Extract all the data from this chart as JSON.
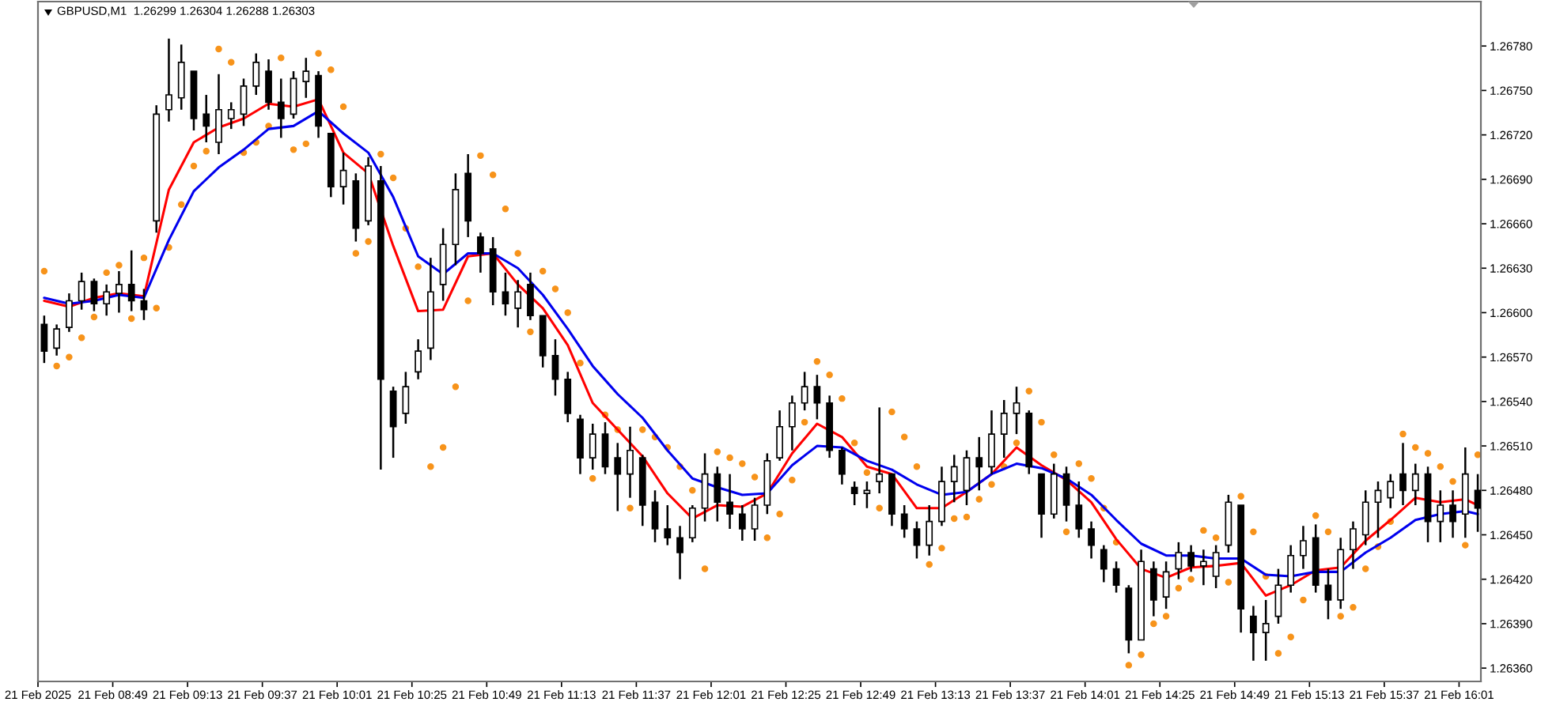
{
  "chart_data": {
    "type": "candlestick",
    "title": "GBPUSD,M1  1.26299 1.26304 1.26288 1.26303",
    "color": "#000000",
    "x": [
      "2025-02-21T08:27",
      "2025-02-21T08:31",
      "2025-02-21T08:35",
      "2025-02-21T08:39",
      "2025-02-21T08:43",
      "2025-02-21T08:47",
      "2025-02-21T08:51",
      "2025-02-21T08:55",
      "2025-02-21T08:59",
      "2025-02-21T09:03",
      "2025-02-21T09:07",
      "2025-02-21T09:11",
      "2025-02-21T09:15",
      "2025-02-21T09:19",
      "2025-02-21T09:23",
      "2025-02-21T09:27",
      "2025-02-21T09:31",
      "2025-02-21T09:35",
      "2025-02-21T09:39",
      "2025-02-21T09:43",
      "2025-02-21T09:47",
      "2025-02-21T09:51",
      "2025-02-21T09:55",
      "2025-02-21T09:59",
      "2025-02-21T10:03",
      "2025-02-21T10:07",
      "2025-02-21T10:11",
      "2025-02-21T10:15",
      "2025-02-21T10:19",
      "2025-02-21T10:23",
      "2025-02-21T10:27",
      "2025-02-21T10:31",
      "2025-02-21T10:35",
      "2025-02-21T10:39",
      "2025-02-21T10:43",
      "2025-02-21T10:47",
      "2025-02-21T10:51",
      "2025-02-21T10:55",
      "2025-02-21T10:59",
      "2025-02-21T11:03",
      "2025-02-21T11:07",
      "2025-02-21T11:11",
      "2025-02-21T11:15",
      "2025-02-21T11:19",
      "2025-02-21T11:23",
      "2025-02-21T11:27",
      "2025-02-21T11:31",
      "2025-02-21T11:35",
      "2025-02-21T11:39",
      "2025-02-21T11:43",
      "2025-02-21T11:47",
      "2025-02-21T11:51",
      "2025-02-21T11:55",
      "2025-02-21T11:59",
      "2025-02-21T12:03",
      "2025-02-21T12:07",
      "2025-02-21T12:11",
      "2025-02-21T12:15",
      "2025-02-21T12:19",
      "2025-02-21T12:23",
      "2025-02-21T12:27",
      "2025-02-21T12:31",
      "2025-02-21T12:35",
      "2025-02-21T12:39",
      "2025-02-21T12:43",
      "2025-02-21T12:47",
      "2025-02-21T12:51",
      "2025-02-21T12:55",
      "2025-02-21T12:59",
      "2025-02-21T13:03",
      "2025-02-21T13:07",
      "2025-02-21T13:11",
      "2025-02-21T13:15",
      "2025-02-21T13:19",
      "2025-02-21T13:23",
      "2025-02-21T13:27",
      "2025-02-21T13:31",
      "2025-02-21T13:35",
      "2025-02-21T13:39",
      "2025-02-21T13:43",
      "2025-02-21T13:47",
      "2025-02-21T13:51",
      "2025-02-21T13:55",
      "2025-02-21T13:59",
      "2025-02-21T14:03",
      "2025-02-21T14:07",
      "2025-02-21T14:11",
      "2025-02-21T14:15",
      "2025-02-21T14:19",
      "2025-02-21T14:23",
      "2025-02-21T14:27",
      "2025-02-21T14:31",
      "2025-02-21T14:35",
      "2025-02-21T14:39",
      "2025-02-21T14:43",
      "2025-02-21T14:47",
      "2025-02-21T14:51",
      "2025-02-21T14:55",
      "2025-02-21T14:59",
      "2025-02-21T15:03",
      "2025-02-21T15:07",
      "2025-02-21T15:11",
      "2025-02-21T15:15",
      "2025-02-21T15:19",
      "2025-02-21T15:23",
      "2025-02-21T15:27",
      "2025-02-21T15:31",
      "2025-02-21T15:35",
      "2025-02-21T15:39",
      "2025-02-21T15:43",
      "2025-02-21T15:47",
      "2025-02-21T15:51",
      "2025-02-21T15:55",
      "2025-02-21T15:59",
      "2025-02-21T16:03",
      "2025-02-21T16:07"
    ],
    "ohlc": [
      [
        1.26592,
        1.26598,
        1.26566,
        1.26574
      ],
      [
        1.26576,
        1.26592,
        1.26571,
        1.26589
      ],
      [
        1.2659,
        1.26613,
        1.26587,
        1.26608
      ],
      [
        1.26608,
        1.26627,
        1.26602,
        1.26621
      ],
      [
        1.26621,
        1.26623,
        1.26601,
        1.26606
      ],
      [
        1.26606,
        1.26619,
        1.26598,
        1.26614
      ],
      [
        1.26613,
        1.26628,
        1.266,
        1.26619
      ],
      [
        1.26619,
        1.26642,
        1.26601,
        1.26608
      ],
      [
        1.26608,
        1.26616,
        1.26595,
        1.26602
      ],
      [
        1.26662,
        1.2674,
        1.26654,
        1.26734
      ],
      [
        1.26737,
        1.26785,
        1.26729,
        1.26747
      ],
      [
        1.26745,
        1.26781,
        1.26737,
        1.26769
      ],
      [
        1.26763,
        1.26763,
        1.26723,
        1.26731
      ],
      [
        1.26734,
        1.26747,
        1.26715,
        1.26726
      ],
      [
        1.26715,
        1.26761,
        1.26707,
        1.26737
      ],
      [
        1.26731,
        1.26742,
        1.26724,
        1.26737
      ],
      [
        1.26734,
        1.26758,
        1.26726,
        1.26753
      ],
      [
        1.26753,
        1.26775,
        1.26747,
        1.26769
      ],
      [
        1.26763,
        1.26771,
        1.26737,
        1.26742
      ],
      [
        1.26742,
        1.26758,
        1.26718,
        1.26731
      ],
      [
        1.26734,
        1.26763,
        1.26731,
        1.26758
      ],
      [
        1.26756,
        1.26772,
        1.26745,
        1.26763
      ],
      [
        1.2676,
        1.26763,
        1.26718,
        1.26726
      ],
      [
        1.26721,
        1.26721,
        1.26678,
        1.26685
      ],
      [
        1.26685,
        1.26708,
        1.26673,
        1.26696
      ],
      [
        1.26689,
        1.26694,
        1.26648,
        1.26657
      ],
      [
        1.26662,
        1.26705,
        1.26659,
        1.26699
      ],
      [
        1.26689,
        1.26699,
        1.26494,
        1.26555
      ],
      [
        1.26547,
        1.2655,
        1.26502,
        1.26523
      ],
      [
        1.26532,
        1.2656,
        1.26525,
        1.2655
      ],
      [
        1.2656,
        1.26582,
        1.26555,
        1.26574
      ],
      [
        1.26576,
        1.26637,
        1.26568,
        1.26614
      ],
      [
        1.26619,
        1.26657,
        1.26608,
        1.26646
      ],
      [
        1.26646,
        1.26694,
        1.26632,
        1.26683
      ],
      [
        1.26694,
        1.26707,
        1.26651,
        1.26662
      ],
      [
        1.26651,
        1.26654,
        1.26627,
        1.2664
      ],
      [
        1.26643,
        1.26651,
        1.26605,
        1.26614
      ],
      [
        1.26614,
        1.26627,
        1.26598,
        1.26606
      ],
      [
        1.26603,
        1.26622,
        1.2659,
        1.26614
      ],
      [
        1.26619,
        1.26627,
        1.26595,
        1.26598
      ],
      [
        1.26598,
        1.26598,
        1.26563,
        1.26571
      ],
      [
        1.26571,
        1.26582,
        1.26544,
        1.26555
      ],
      [
        1.26555,
        1.2656,
        1.26526,
        1.26532
      ],
      [
        1.26528,
        1.26531,
        1.26491,
        1.26502
      ],
      [
        1.26502,
        1.26525,
        1.26494,
        1.26518
      ],
      [
        1.26518,
        1.26526,
        1.26491,
        1.26496
      ],
      [
        1.26502,
        1.26512,
        1.26466,
        1.26491
      ],
      [
        1.26491,
        1.26523,
        1.26475,
        1.26507
      ],
      [
        1.26502,
        1.26504,
        1.26456,
        1.2647
      ],
      [
        1.26472,
        1.2648,
        1.26445,
        1.26454
      ],
      [
        1.26454,
        1.2647,
        1.26443,
        1.26448
      ],
      [
        1.26448,
        1.26456,
        1.2642,
        1.26438
      ],
      [
        1.26448,
        1.2647,
        1.26445,
        1.26468
      ],
      [
        1.26468,
        1.26505,
        1.26459,
        1.26491
      ],
      [
        1.26491,
        1.26496,
        1.26459,
        1.26472
      ],
      [
        1.26472,
        1.26491,
        1.26454,
        1.26464
      ],
      [
        1.26464,
        1.2647,
        1.26446,
        1.26454
      ],
      [
        1.26454,
        1.26475,
        1.26446,
        1.2647
      ],
      [
        1.2647,
        1.26505,
        1.26464,
        1.265
      ],
      [
        1.26502,
        1.26534,
        1.265,
        1.26523
      ],
      [
        1.26523,
        1.26544,
        1.26507,
        1.26539
      ],
      [
        1.26539,
        1.2656,
        1.26534,
        1.2655
      ],
      [
        1.2655,
        1.26558,
        1.26528,
        1.26539
      ],
      [
        1.26539,
        1.26544,
        1.26502,
        1.26507
      ],
      [
        1.26507,
        1.26509,
        1.26484,
        1.26491
      ],
      [
        1.26482,
        1.26486,
        1.2647,
        1.26478
      ],
      [
        1.26478,
        1.26486,
        1.26468,
        1.2648
      ],
      [
        1.26486,
        1.26536,
        1.26478,
        1.26491
      ],
      [
        1.26491,
        1.26491,
        1.26456,
        1.26464
      ],
      [
        1.26464,
        1.2647,
        1.26448,
        1.26454
      ],
      [
        1.26454,
        1.26459,
        1.26434,
        1.26443
      ],
      [
        1.26443,
        1.2647,
        1.26436,
        1.26459
      ],
      [
        1.26459,
        1.26496,
        1.26456,
        1.26486
      ],
      [
        1.26486,
        1.26504,
        1.26472,
        1.26496
      ],
      [
        1.2648,
        1.26507,
        1.2647,
        1.26502
      ],
      [
        1.26502,
        1.26516,
        1.2648,
        1.26496
      ],
      [
        1.26496,
        1.26534,
        1.26491,
        1.26518
      ],
      [
        1.26518,
        1.26541,
        1.26502,
        1.26532
      ],
      [
        1.26532,
        1.2655,
        1.26518,
        1.26539
      ],
      [
        1.26532,
        1.26534,
        1.26491,
        1.26496
      ],
      [
        1.26491,
        1.26491,
        1.26448,
        1.26464
      ],
      [
        1.26464,
        1.26498,
        1.26461,
        1.26491
      ],
      [
        1.26491,
        1.26496,
        1.26459,
        1.2647
      ],
      [
        1.2647,
        1.26486,
        1.26448,
        1.26454
      ],
      [
        1.26454,
        1.26459,
        1.26434,
        1.26443
      ],
      [
        1.2644,
        1.26443,
        1.26418,
        1.26427
      ],
      [
        1.26427,
        1.26432,
        1.26411,
        1.26416
      ],
      [
        1.26414,
        1.26416,
        1.2637,
        1.26379
      ],
      [
        1.26379,
        1.2644,
        1.26379,
        1.26432
      ],
      [
        1.26427,
        1.26432,
        1.26395,
        1.26406
      ],
      [
        1.26408,
        1.26432,
        1.264,
        1.26425
      ],
      [
        1.26427,
        1.26445,
        1.2642,
        1.26438
      ],
      [
        1.26438,
        1.26443,
        1.26425,
        1.26429
      ],
      [
        1.26429,
        1.2644,
        1.26416,
        1.26432
      ],
      [
        1.26422,
        1.26443,
        1.26414,
        1.26438
      ],
      [
        1.26443,
        1.26477,
        1.26438,
        1.26472
      ],
      [
        1.2647,
        1.2647,
        1.26384,
        1.264
      ],
      [
        1.26395,
        1.26402,
        1.26365,
        1.26384
      ],
      [
        1.26384,
        1.26406,
        1.26365,
        1.2639
      ],
      [
        1.26395,
        1.26427,
        1.2639,
        1.26416
      ],
      [
        1.26416,
        1.26443,
        1.26411,
        1.26436
      ],
      [
        1.26436,
        1.26456,
        1.26427,
        1.26446
      ],
      [
        1.26448,
        1.26457,
        1.26411,
        1.26416
      ],
      [
        1.26416,
        1.26427,
        1.26393,
        1.26406
      ],
      [
        1.26406,
        1.26448,
        1.264,
        1.2644
      ],
      [
        1.2644,
        1.26459,
        1.26427,
        1.26454
      ],
      [
        1.2645,
        1.2648,
        1.26443,
        1.26472
      ],
      [
        1.26472,
        1.26486,
        1.26448,
        1.2648
      ],
      [
        1.26475,
        1.26491,
        1.26468,
        1.26486
      ],
      [
        1.26491,
        1.26512,
        1.2647,
        1.2648
      ],
      [
        1.2648,
        1.26498,
        1.2647,
        1.26491
      ],
      [
        1.26491,
        1.26496,
        1.26445,
        1.26459
      ],
      [
        1.26459,
        1.2648,
        1.26445,
        1.2647
      ],
      [
        1.2647,
        1.2648,
        1.26448,
        1.26459
      ],
      [
        1.26464,
        1.26509,
        1.26448,
        1.26491
      ],
      [
        1.2648,
        1.26491,
        1.26452,
        1.26468
      ]
    ],
    "series": [
      {
        "type": "line",
        "color": "#ff0000",
        "x": [
          "2025-02-21T08:27",
          "2025-02-21T08:35",
          "2025-02-21T08:43",
          "2025-02-21T08:51",
          "2025-02-21T08:59",
          "2025-02-21T09:07",
          "2025-02-21T09:15",
          "2025-02-21T09:23",
          "2025-02-21T09:31",
          "2025-02-21T09:39",
          "2025-02-21T09:47",
          "2025-02-21T09:55",
          "2025-02-21T10:03",
          "2025-02-21T10:11",
          "2025-02-21T10:19",
          "2025-02-21T10:27",
          "2025-02-21T10:35",
          "2025-02-21T10:43",
          "2025-02-21T10:51",
          "2025-02-21T10:59",
          "2025-02-21T11:07",
          "2025-02-21T11:15",
          "2025-02-21T11:23",
          "2025-02-21T11:31",
          "2025-02-21T11:39",
          "2025-02-21T11:47",
          "2025-02-21T11:55",
          "2025-02-21T12:03",
          "2025-02-21T12:11",
          "2025-02-21T12:19",
          "2025-02-21T12:27",
          "2025-02-21T12:35",
          "2025-02-21T12:43",
          "2025-02-21T12:51",
          "2025-02-21T12:59",
          "2025-02-21T13:07",
          "2025-02-21T13:15",
          "2025-02-21T13:23",
          "2025-02-21T13:31",
          "2025-02-21T13:39",
          "2025-02-21T13:47",
          "2025-02-21T13:55",
          "2025-02-21T14:03",
          "2025-02-21T14:11",
          "2025-02-21T14:19",
          "2025-02-21T14:27",
          "2025-02-21T14:35",
          "2025-02-21T14:43",
          "2025-02-21T14:51",
          "2025-02-21T14:59",
          "2025-02-21T15:07",
          "2025-02-21T15:15",
          "2025-02-21T15:23",
          "2025-02-21T15:31",
          "2025-02-21T15:39",
          "2025-02-21T15:47",
          "2025-02-21T15:55",
          "2025-02-21T16:03",
          "2025-02-21T16:07"
        ],
        "values": [
          1.26608,
          1.26604,
          1.2661,
          1.26613,
          1.26611,
          1.26683,
          1.26715,
          1.26725,
          1.26731,
          1.26741,
          1.26739,
          1.26744,
          1.26708,
          1.26694,
          1.26645,
          1.26601,
          1.26602,
          1.26638,
          1.2664,
          1.26619,
          1.26603,
          1.26578,
          1.26539,
          1.26521,
          1.26503,
          1.26478,
          1.26461,
          1.2647,
          1.26469,
          1.26478,
          1.26505,
          1.26525,
          1.26516,
          1.26496,
          1.26491,
          1.26468,
          1.26468,
          1.26479,
          1.26491,
          1.26509,
          1.26497,
          1.26487,
          1.26472,
          1.26447,
          1.26427,
          1.26421,
          1.26428,
          1.26429,
          1.26431,
          1.26409,
          1.26416,
          1.26426,
          1.26428,
          1.26446,
          1.2646,
          1.26475,
          1.26472,
          1.26474,
          1.2647
        ]
      },
      {
        "type": "line",
        "color": "#0000ee",
        "x": [
          "2025-02-21T08:27",
          "2025-02-21T08:35",
          "2025-02-21T08:43",
          "2025-02-21T08:51",
          "2025-02-21T08:59",
          "2025-02-21T09:07",
          "2025-02-21T09:15",
          "2025-02-21T09:23",
          "2025-02-21T09:31",
          "2025-02-21T09:39",
          "2025-02-21T09:47",
          "2025-02-21T09:55",
          "2025-02-21T10:03",
          "2025-02-21T10:11",
          "2025-02-21T10:19",
          "2025-02-21T10:27",
          "2025-02-21T10:35",
          "2025-02-21T10:43",
          "2025-02-21T10:51",
          "2025-02-21T10:59",
          "2025-02-21T11:07",
          "2025-02-21T11:15",
          "2025-02-21T11:23",
          "2025-02-21T11:31",
          "2025-02-21T11:39",
          "2025-02-21T11:47",
          "2025-02-21T11:55",
          "2025-02-21T12:03",
          "2025-02-21T12:11",
          "2025-02-21T12:19",
          "2025-02-21T12:27",
          "2025-02-21T12:35",
          "2025-02-21T12:43",
          "2025-02-21T12:51",
          "2025-02-21T12:59",
          "2025-02-21T13:07",
          "2025-02-21T13:15",
          "2025-02-21T13:23",
          "2025-02-21T13:31",
          "2025-02-21T13:39",
          "2025-02-21T13:47",
          "2025-02-21T13:55",
          "2025-02-21T14:03",
          "2025-02-21T14:11",
          "2025-02-21T14:19",
          "2025-02-21T14:27",
          "2025-02-21T14:35",
          "2025-02-21T14:43",
          "2025-02-21T14:51",
          "2025-02-21T14:59",
          "2025-02-21T15:07",
          "2025-02-21T15:15",
          "2025-02-21T15:23",
          "2025-02-21T15:31",
          "2025-02-21T15:39",
          "2025-02-21T15:47",
          "2025-02-21T15:55",
          "2025-02-21T16:03",
          "2025-02-21T16:07"
        ],
        "values": [
          1.2661,
          1.26606,
          1.26608,
          1.26612,
          1.2661,
          1.26649,
          1.26682,
          1.26698,
          1.2671,
          1.26724,
          1.26726,
          1.26736,
          1.26721,
          1.26708,
          1.26678,
          1.26638,
          1.26626,
          1.2664,
          1.2664,
          1.2663,
          1.26612,
          1.26589,
          1.26564,
          1.26545,
          1.26529,
          1.26507,
          1.26488,
          1.26482,
          1.26477,
          1.26478,
          1.26497,
          1.2651,
          1.26509,
          1.265,
          1.26494,
          1.26484,
          1.26477,
          1.26479,
          1.26491,
          1.26498,
          1.26495,
          1.26488,
          1.26477,
          1.2646,
          1.26444,
          1.26436,
          1.26436,
          1.26434,
          1.26434,
          1.26423,
          1.26422,
          1.26425,
          1.26425,
          1.26438,
          1.26448,
          1.2646,
          1.26464,
          1.26466,
          1.26464
        ]
      },
      {
        "type": "scatter",
        "color": "#f7931a",
        "marker": "circle",
        "values": [
          1.26628,
          1.26564,
          1.2657,
          1.26583,
          1.26597,
          1.26627,
          1.26632,
          1.26596,
          1.26637,
          1.26603,
          1.26644,
          1.26673,
          1.26699,
          1.26709,
          1.26778,
          1.26769,
          1.26708,
          1.26715,
          1.26726,
          1.26772,
          1.2671,
          1.26714,
          1.26775,
          1.26764,
          1.26739,
          1.2664,
          1.26648,
          1.26707,
          1.26691,
          1.26657,
          1.26631,
          1.26496,
          1.26509,
          1.2655,
          1.26608,
          1.26706,
          1.26693,
          1.2667,
          1.2664,
          1.26587,
          1.26628,
          1.26616,
          1.266,
          1.26566,
          1.26488,
          1.26531,
          1.26521,
          1.26468,
          1.26521,
          1.26516,
          1.26509,
          1.26496,
          1.2648,
          1.26427,
          1.26506,
          1.26502,
          1.26498,
          1.26489,
          1.26448,
          1.26464,
          1.26487,
          1.26526,
          1.26567,
          1.26558,
          1.26542,
          1.26512,
          1.26492,
          1.26468,
          1.26533,
          1.26516,
          1.26496,
          1.2643,
          1.26441,
          1.26461,
          1.26462,
          1.26474,
          1.26484,
          1.26496,
          1.26512,
          1.26547,
          1.26526,
          1.26504,
          1.26452,
          1.26498,
          1.26488,
          1.26468,
          1.26445,
          1.26362,
          1.26369,
          1.2639,
          1.26395,
          1.26414,
          1.2642,
          1.26453,
          1.26448,
          1.26418,
          1.26476,
          1.26452,
          1.26422,
          1.2637,
          1.26381,
          1.26406,
          1.26463,
          1.26452,
          1.26395,
          1.26401,
          1.26427,
          1.26442,
          1.26459,
          1.26518,
          1.26509,
          1.26505,
          1.26496,
          1.26486,
          1.26443,
          1.26504
        ]
      }
    ],
    "xlim": [
      "2025-02-21T08:25",
      "2025-02-21T16:08"
    ],
    "xticks": [
      {
        "value": "2025-02-21T08:25",
        "label": "21 Feb 2025"
      },
      {
        "value": "2025-02-21T08:49",
        "label": "21 Feb 08:49"
      },
      {
        "value": "2025-02-21T09:13",
        "label": "21 Feb 09:13"
      },
      {
        "value": "2025-02-21T09:37",
        "label": "21 Feb 09:37"
      },
      {
        "value": "2025-02-21T10:01",
        "label": "21 Feb 10:01"
      },
      {
        "value": "2025-02-21T10:25",
        "label": "21 Feb 10:25"
      },
      {
        "value": "2025-02-21T10:49",
        "label": "21 Feb 10:49"
      },
      {
        "value": "2025-02-21T11:13",
        "label": "21 Feb 11:13"
      },
      {
        "value": "2025-02-21T11:37",
        "label": "21 Feb 11:37"
      },
      {
        "value": "2025-02-21T12:01",
        "label": "21 Feb 12:01"
      },
      {
        "value": "2025-02-21T12:25",
        "label": "21 Feb 12:25"
      },
      {
        "value": "2025-02-21T12:49",
        "label": "21 Feb 12:49"
      },
      {
        "value": "2025-02-21T13:13",
        "label": "21 Feb 13:13"
      },
      {
        "value": "2025-02-21T13:37",
        "label": "21 Feb 13:37"
      },
      {
        "value": "2025-02-21T14:01",
        "label": "21 Feb 14:01"
      },
      {
        "value": "2025-02-21T14:25",
        "label": "21 Feb 14:25"
      },
      {
        "value": "2025-02-21T14:49",
        "label": "21 Feb 14:49"
      },
      {
        "value": "2025-02-21T15:13",
        "label": "21 Feb 15:13"
      },
      {
        "value": "2025-02-21T15:37",
        "label": "21 Feb 15:37"
      },
      {
        "value": "2025-02-21T16:01",
        "label": "21 Feb 16:01"
      }
    ],
    "ylim": [
      1.26351,
      1.2681
    ],
    "yticks": [
      {
        "value": 1.2636,
        "label": "1.26360"
      },
      {
        "value": 1.2639,
        "label": "1.26390"
      },
      {
        "value": 1.2642,
        "label": "1.26420"
      },
      {
        "value": 1.2645,
        "label": "1.26450"
      },
      {
        "value": 1.2648,
        "label": "1.26480"
      },
      {
        "value": 1.2651,
        "label": "1.26510"
      },
      {
        "value": 1.2654,
        "label": "1.26540"
      },
      {
        "value": 1.2657,
        "label": "1.26570"
      },
      {
        "value": 1.266,
        "label": "1.26600"
      },
      {
        "value": 1.2663,
        "label": "1.26630"
      },
      {
        "value": 1.2666,
        "label": "1.26660"
      },
      {
        "value": 1.2669,
        "label": "1.26690"
      },
      {
        "value": 1.2672,
        "label": "1.26720"
      },
      {
        "value": 1.2675,
        "label": "1.26750"
      },
      {
        "value": 1.2678,
        "label": "1.26780"
      }
    ]
  }
}
